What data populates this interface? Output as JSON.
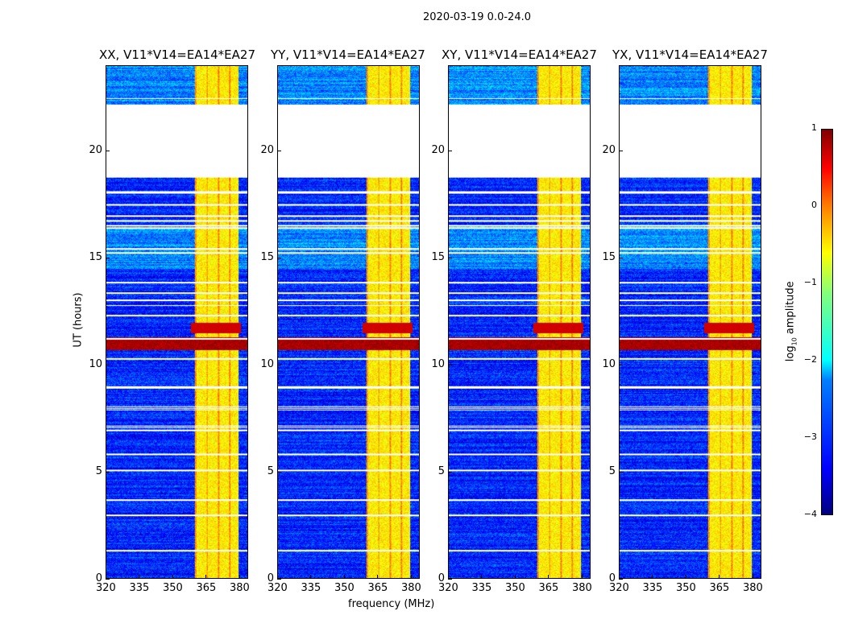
{
  "suptitle": "2020-03-19 0.0-24.0",
  "chart_data": {
    "type": "heatmap",
    "title": "2020-03-19 0.0-24.0",
    "xlabel": "frequency (MHz)",
    "ylabel": "UT (hours)",
    "xlim": [
      320,
      384
    ],
    "ylim": [
      0,
      24
    ],
    "xticks": [
      "320",
      "335",
      "350",
      "365",
      "380"
    ],
    "xtick_values": [
      320,
      335,
      350,
      365,
      380
    ],
    "yticks": [
      "0",
      "5",
      "10",
      "15",
      "20"
    ],
    "ytick_values": [
      0,
      5,
      10,
      15,
      20
    ],
    "panels": [
      {
        "title": "XX, V11*V14=EA14*EA27"
      },
      {
        "title": "YY, V11*V14=EA14*EA27"
      },
      {
        "title": "XY, V11*V14=EA14*EA27"
      },
      {
        "title": "YX, V11*V14=EA14*EA27"
      }
    ],
    "features": {
      "data_gap_hours": [
        18.8,
        22.2
      ],
      "rfi_band_mhz": [
        360,
        380
      ],
      "strong_rfi_hours": [
        10.7,
        11.3
      ],
      "background_log10_amplitude": -3.2,
      "rfi_band_log10_amplitude": -0.8,
      "strong_rfi_log10_amplitude": 0.8
    },
    "colorbar": {
      "label": "log10 amplitude",
      "label_main": "log",
      "label_sub": "10",
      "label_rest": " amplitude",
      "range": [
        -4,
        1
      ],
      "ticks": [
        "−4",
        "−3",
        "−2",
        "−1",
        "0",
        "1"
      ],
      "tick_values": [
        -4,
        -3,
        -2,
        -1,
        0,
        1
      ],
      "colormap": "jet"
    }
  }
}
